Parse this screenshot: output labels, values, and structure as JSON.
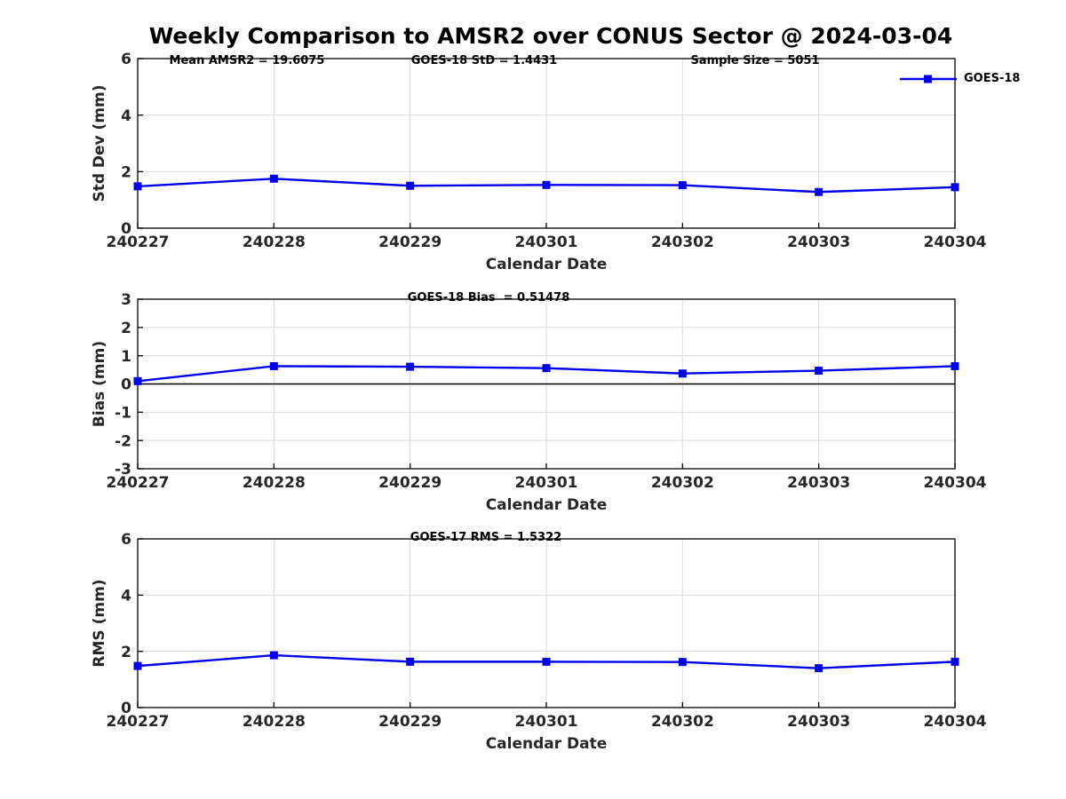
{
  "title": "Weekly Comparison to AMSR2 over CONUS Sector @ 2024-03-04",
  "colors": {
    "line": "#0000EE",
    "grid": "#D9D9D9",
    "axis": "#000000",
    "tick_text": "#262626",
    "zero_line": "#000000",
    "background": "#FFFFFF"
  },
  "chart_data": [
    {
      "type": "line",
      "panel": "std-dev",
      "annotations": [
        "Mean AMSR2 = 19.6075",
        "GOES-18 StD = 1.4431",
        "Sample Size = 5051"
      ],
      "categories": [
        "240227",
        "240228",
        "240229",
        "240301",
        "240302",
        "240303",
        "240304"
      ],
      "series": [
        {
          "name": "GOES-18",
          "color": "#0000EE",
          "marker": "filled-square",
          "values": [
            1.48,
            1.75,
            1.5,
            1.53,
            1.52,
            1.28,
            1.45
          ]
        }
      ],
      "xlabel": "Calendar Date",
      "ylabel": "Std Dev (mm)",
      "ylim": [
        0,
        6
      ],
      "yticks": [
        0,
        2,
        4,
        6
      ],
      "grid": true,
      "zero_line": false,
      "legend_position": "top-right-outside"
    },
    {
      "type": "line",
      "panel": "bias",
      "annotations": [
        "GOES-18 Bias  = 0.51478"
      ],
      "categories": [
        "240227",
        "240228",
        "240229",
        "240301",
        "240302",
        "240303",
        "240304"
      ],
      "series": [
        {
          "name": "GOES-18",
          "color": "#0000EE",
          "marker": "filled-square",
          "values": [
            0.1,
            0.63,
            0.61,
            0.56,
            0.37,
            0.47,
            0.63
          ]
        }
      ],
      "xlabel": "Calendar Date",
      "ylabel": "Bias (mm)",
      "ylim": [
        -3,
        3
      ],
      "yticks": [
        -3,
        -2,
        -1,
        0,
        1,
        2,
        3
      ],
      "grid": true,
      "zero_line": true,
      "legend_position": "none"
    },
    {
      "type": "line",
      "panel": "rms",
      "annotations": [
        "GOES-17 RMS = 1.5322"
      ],
      "categories": [
        "240227",
        "240228",
        "240229",
        "240301",
        "240302",
        "240303",
        "240304"
      ],
      "series": [
        {
          "name": "GOES-18",
          "color": "#0000EE",
          "marker": "filled-square",
          "values": [
            1.48,
            1.86,
            1.63,
            1.63,
            1.62,
            1.4,
            1.63
          ]
        }
      ],
      "xlabel": "Calendar Date",
      "ylabel": "RMS (mm)",
      "ylim": [
        0,
        6
      ],
      "yticks": [
        0,
        2,
        4,
        6
      ],
      "grid": true,
      "zero_line": false,
      "legend_position": "none"
    }
  ]
}
